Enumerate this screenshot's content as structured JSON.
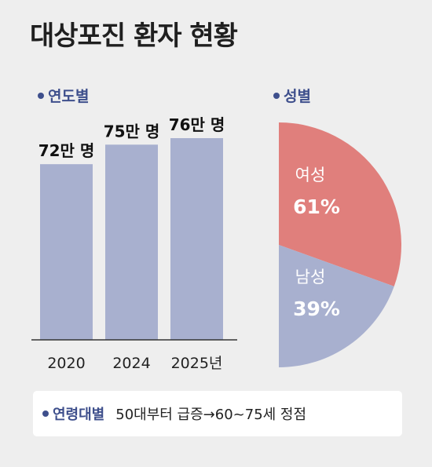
{
  "title": "대상포진 환자 현황",
  "sections": {
    "by_year": "연도별",
    "by_gender": "성별",
    "by_age": "연령대별"
  },
  "age_note": "50대부터 급증→60~75세 정점",
  "chart_data": [
    {
      "type": "bar",
      "categories": [
        "2020",
        "2024",
        "2025년"
      ],
      "values": [
        72,
        75,
        76
      ],
      "data_labels": [
        "72만 명",
        "75만 명",
        "76만 명"
      ],
      "unit": "만 명",
      "ylim": [
        45,
        76
      ],
      "grid": false,
      "colors": {
        "bar": "#a8b0cf",
        "axis": "#333333"
      }
    },
    {
      "type": "pie",
      "labels": [
        "여성",
        "남성"
      ],
      "values": [
        61,
        39
      ],
      "data_labels": [
        "61%",
        "39%"
      ],
      "colors": {
        "여성": "#e07f7c",
        "남성": "#a8b0cf"
      }
    }
  ],
  "colors": {
    "accent": "#3e4f8c",
    "background": "#eeeeee"
  }
}
